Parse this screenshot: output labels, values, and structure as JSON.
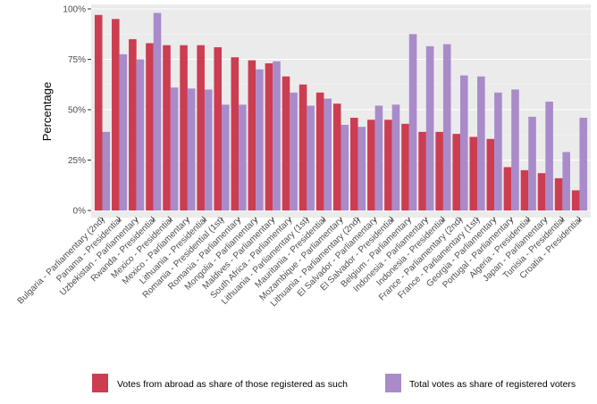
{
  "chart_data": {
    "type": "bar",
    "title": "",
    "xlabel": "",
    "ylabel": "Percentage",
    "ylim": [
      0,
      1
    ],
    "yticks": [
      "0%",
      "25%",
      "50%",
      "75%",
      "100%"
    ],
    "grid": true,
    "legend_position": "bottom",
    "categories": [
      "Bulgaria - Parliamentary (2nd)",
      "Panama - Presidential",
      "Uzbekistan - Parliamentary",
      "Rwanda - Presidential",
      "Mexico - Presidential",
      "Mexico - Parliamentary",
      "Lithuania - Presidential",
      "Romania - Presidential (1st)",
      "Romania - Parliamentary",
      "Mongolia - Parliamentary",
      "Maldives - Parliamentary",
      "South Africa - Parliamentary",
      "Lithuania - Parliamentary (1st)",
      "Mauritania - Presidential",
      "Mozambique - Parliamentary",
      "Lithuania - Parliamentary (2nd)",
      "El Salvador - Parliamentary",
      "El Salvador - Presidential",
      "Belgium - Parliamentary",
      "Indonesia - Parliamentary",
      "Indonesia - Presidential",
      "France - Parliamentary (2nd)",
      "France - Parliamentary (1st)",
      "Georgia - Parliamentary",
      "Portugal - Parliamentary",
      "Algeria - Presidential",
      "Japan - Parliamentary",
      "Tunisia - Presidential",
      "Croatia - Presidential"
    ],
    "series": [
      {
        "name": "Votes from abroad as share of those registered as such",
        "color": "#cc3d52",
        "values": [
          0.97,
          0.95,
          0.85,
          0.83,
          0.82,
          0.82,
          0.82,
          0.81,
          0.76,
          0.745,
          0.73,
          0.665,
          0.625,
          0.585,
          0.53,
          0.46,
          0.45,
          0.45,
          0.43,
          0.39,
          0.39,
          0.38,
          0.365,
          0.355,
          0.215,
          0.2,
          0.185,
          0.16,
          0.1
        ]
      },
      {
        "name": "Total votes as share of registered voters",
        "color": "#a98bc9",
        "values": [
          0.39,
          0.775,
          0.75,
          0.98,
          0.61,
          0.605,
          0.6,
          0.525,
          0.525,
          0.7,
          0.74,
          0.585,
          0.52,
          0.555,
          0.425,
          0.415,
          0.52,
          0.525,
          0.875,
          0.815,
          0.825,
          0.67,
          0.665,
          0.585,
          0.6,
          0.465,
          0.54,
          0.29,
          0.46
        ]
      }
    ]
  }
}
